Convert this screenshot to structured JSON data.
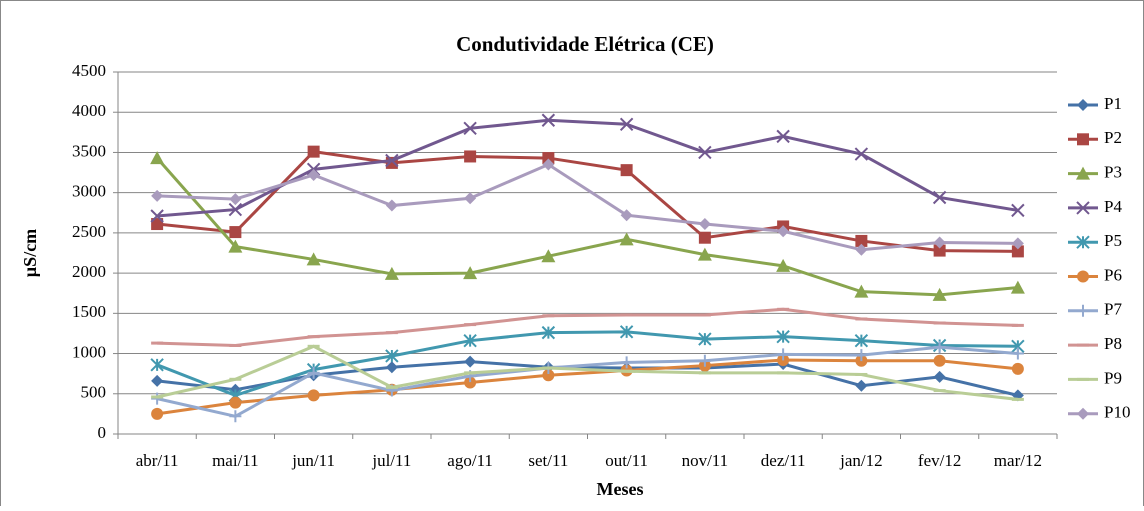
{
  "chart_data": {
    "type": "line",
    "title": "Condutividade Elétrica (CE)",
    "x_label": "Meses",
    "y_label": "µS/cm",
    "categories": [
      "abr/11",
      "mai/11",
      "jun/11",
      "jul/11",
      "ago/11",
      "set/11",
      "out/11",
      "nov/11",
      "dez/11",
      "jan/12",
      "fev/12",
      "mar/12"
    ],
    "ylim": [
      0,
      4500
    ],
    "yticks": [
      0,
      500,
      1000,
      1500,
      2000,
      2500,
      3000,
      3500,
      4000,
      4500
    ],
    "grid": true,
    "legend": "right",
    "series": [
      {
        "name": "P1",
        "color": "#4572a7",
        "marker": "diamond",
        "values": [
          660,
          550,
          730,
          830,
          900,
          830,
          820,
          820,
          870,
          600,
          710,
          480
        ]
      },
      {
        "name": "P2",
        "color": "#aa4643",
        "marker": "square",
        "values": [
          2610,
          2510,
          3510,
          3370,
          3450,
          3430,
          3280,
          2440,
          2580,
          2400,
          2280,
          2270
        ]
      },
      {
        "name": "P3",
        "color": "#89a54e",
        "marker": "triangle",
        "values": [
          3430,
          2330,
          2170,
          1990,
          2000,
          2210,
          2420,
          2230,
          2090,
          1770,
          1730,
          1820
        ]
      },
      {
        "name": "P4",
        "color": "#71588f",
        "marker": "x",
        "values": [
          2710,
          2790,
          3290,
          3400,
          3800,
          3900,
          3850,
          3500,
          3700,
          3480,
          2940,
          2780
        ]
      },
      {
        "name": "P5",
        "color": "#4198af",
        "marker": "star",
        "values": [
          860,
          480,
          800,
          970,
          1160,
          1260,
          1270,
          1180,
          1210,
          1160,
          1100,
          1090
        ]
      },
      {
        "name": "P6",
        "color": "#db843d",
        "marker": "circle",
        "values": [
          250,
          390,
          480,
          550,
          640,
          730,
          790,
          850,
          920,
          910,
          910,
          810
        ]
      },
      {
        "name": "P7",
        "color": "#93a9cf",
        "marker": "plus",
        "values": [
          440,
          220,
          760,
          540,
          720,
          820,
          890,
          910,
          990,
          980,
          1080,
          1000
        ]
      },
      {
        "name": "P8",
        "color": "#d19392",
        "marker": "dash",
        "values": [
          1130,
          1100,
          1210,
          1260,
          1360,
          1470,
          1480,
          1480,
          1550,
          1430,
          1380,
          1350
        ]
      },
      {
        "name": "P9",
        "color": "#b9cd96",
        "marker": "dash",
        "values": [
          460,
          680,
          1090,
          580,
          760,
          820,
          780,
          760,
          760,
          740,
          540,
          430
        ]
      },
      {
        "name": "P10",
        "color": "#a99bbd",
        "marker": "diamond",
        "values": [
          2960,
          2920,
          3220,
          2840,
          2930,
          3350,
          2720,
          2610,
          2520,
          2290,
          2380,
          2370
        ]
      }
    ]
  }
}
